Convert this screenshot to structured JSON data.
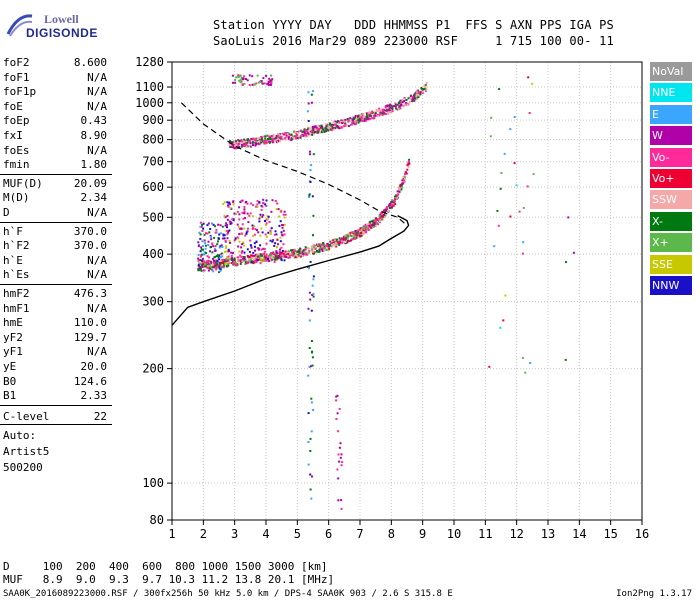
{
  "logo": {
    "line1": "Lowell",
    "line2": "DIGISONDE"
  },
  "header": {
    "line1": "Station YYYY DAY   DDD HHMMSS P1  FFS S AXN PPS IGA PS",
    "line2": "SaoLuis 2016 Mar29 089 223000 RSF     1 715 100 00- 11"
  },
  "params_group1": [
    {
      "label": "foF2",
      "value": "8.600"
    },
    {
      "label": "foF1",
      "value": "N/A"
    },
    {
      "label": "foF1p",
      "value": "N/A"
    },
    {
      "label": "foE",
      "value": "N/A"
    },
    {
      "label": "foEp",
      "value": "0.43"
    },
    {
      "label": "fxI",
      "value": "8.90"
    },
    {
      "label": "foEs",
      "value": "N/A"
    },
    {
      "label": "fmin",
      "value": "1.80"
    }
  ],
  "params_group2": [
    {
      "label": "MUF(D)",
      "value": "20.09"
    },
    {
      "label": "M(D)",
      "value": "2.34"
    },
    {
      "label": "D",
      "value": "N/A"
    }
  ],
  "params_group3": [
    {
      "label": "h`F",
      "value": "370.0"
    },
    {
      "label": "h`F2",
      "value": "370.0"
    },
    {
      "label": "h`E",
      "value": "N/A"
    },
    {
      "label": "h`Es",
      "value": "N/A"
    }
  ],
  "params_group4": [
    {
      "label": "hmF2",
      "value": "476.3"
    },
    {
      "label": "hmF1",
      "value": "N/A"
    },
    {
      "label": "hmE",
      "value": "110.0"
    },
    {
      "label": "yF2",
      "value": "129.7"
    },
    {
      "label": "yF1",
      "value": "N/A"
    },
    {
      "label": "yE",
      "value": "20.0"
    },
    {
      "label": "B0",
      "value": "124.6"
    },
    {
      "label": "B1",
      "value": "2.33"
    }
  ],
  "clevel": {
    "label": "C-level",
    "value": "22"
  },
  "auto": {
    "line1": "Auto:",
    "line2": "Artist5",
    "line3": "500200"
  },
  "legend": [
    {
      "label": "NoVal",
      "color": "#9a9a9a"
    },
    {
      "label": "NNE",
      "color": "#00e5ee"
    },
    {
      "label": "E",
      "color": "#3aa6ff"
    },
    {
      "label": "W",
      "color": "#b000a8"
    },
    {
      "label": "Vo-",
      "color": "#ff2a9a"
    },
    {
      "label": "Vo+",
      "color": "#ee0033"
    },
    {
      "label": "SSW",
      "color": "#f4a8a8"
    },
    {
      "label": "X-",
      "color": "#007a10"
    },
    {
      "label": "X+",
      "color": "#5cb84a"
    },
    {
      "label": "SSE",
      "color": "#c8c800"
    },
    {
      "label": "NNW",
      "color": "#1a10c8"
    }
  ],
  "bottom": {
    "d_line": "D     100  200  400  600  800 1000 1500 3000 [km]",
    "muf_line": "MUF   8.9  9.0  9.3  9.7 10.3 11.2 13.8 20.1 [MHz]"
  },
  "footer": {
    "left": "SAA0K_2016089223000.RSF / 300fx256h 50 kHz 5.0 km / DPS-4 SAA0K 903 / 2.6 S 315.8 E",
    "right": "Ion2Png 1.3.17"
  },
  "chart_data": {
    "type": "scatter",
    "xlim": [
      1,
      16
    ],
    "ylim": [
      80,
      1280
    ],
    "y_scale": "log",
    "x_ticks": [
      1,
      2,
      3,
      4,
      5,
      6,
      7,
      8,
      9,
      10,
      11,
      12,
      13,
      14,
      15,
      16
    ],
    "y_ticks": [
      80,
      100,
      200,
      300,
      400,
      500,
      600,
      700,
      800,
      900,
      1000,
      1100,
      1280
    ],
    "grid": true,
    "solid_profile": [
      [
        1,
        260
      ],
      [
        1.5,
        290
      ],
      [
        2,
        300
      ],
      [
        3,
        320
      ],
      [
        4,
        345
      ],
      [
        5,
        365
      ],
      [
        6,
        385
      ],
      [
        7,
        405
      ],
      [
        7.6,
        420
      ],
      [
        8,
        440
      ],
      [
        8.4,
        460
      ],
      [
        8.55,
        476
      ],
      [
        8.5,
        490
      ],
      [
        8.2,
        505
      ]
    ],
    "dashed_curve": [
      [
        1.3,
        1000
      ],
      [
        2,
        880
      ],
      [
        3,
        770
      ],
      [
        4,
        705
      ],
      [
        5,
        660
      ],
      [
        6,
        610
      ],
      [
        7,
        555
      ],
      [
        7.6,
        520
      ],
      [
        8.2,
        500
      ],
      [
        8.5,
        476
      ]
    ],
    "o_trace": [
      [
        1.8,
        375
      ],
      [
        2.5,
        380
      ],
      [
        3,
        385
      ],
      [
        3.5,
        390
      ],
      [
        4,
        395
      ],
      [
        4.5,
        400
      ],
      [
        5,
        405
      ],
      [
        5.5,
        415
      ],
      [
        6,
        425
      ],
      [
        6.5,
        440
      ],
      [
        7,
        460
      ],
      [
        7.5,
        490
      ],
      [
        7.8,
        520
      ],
      [
        8.1,
        560
      ],
      [
        8.3,
        610
      ],
      [
        8.45,
        660
      ],
      [
        8.55,
        710
      ]
    ],
    "x_trace": [
      [
        2.8,
        780
      ],
      [
        3.5,
        790
      ],
      [
        4,
        805
      ],
      [
        4.5,
        815
      ],
      [
        5,
        830
      ],
      [
        5.5,
        850
      ],
      [
        6,
        870
      ],
      [
        6.5,
        890
      ],
      [
        7,
        915
      ],
      [
        7.5,
        945
      ],
      [
        8,
        975
      ],
      [
        8.3,
        1000
      ],
      [
        8.6,
        1030
      ],
      [
        8.9,
        1070
      ],
      [
        9.1,
        1110
      ]
    ]
  }
}
